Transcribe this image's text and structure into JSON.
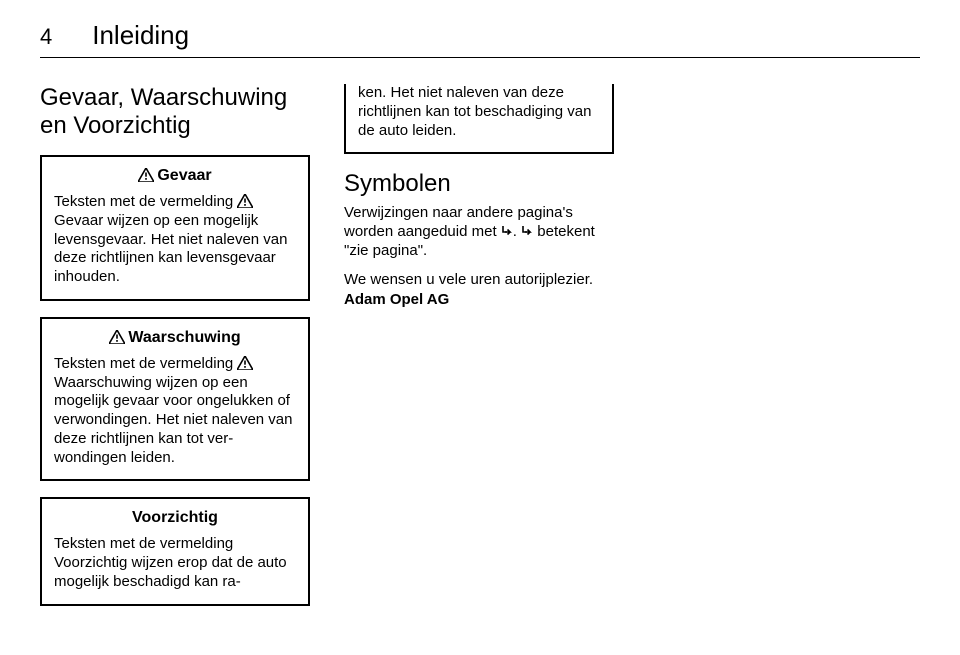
{
  "colors": {
    "text": "#000000",
    "background": "#ffffff",
    "border": "#000000"
  },
  "typography": {
    "body_pt": 15,
    "h2_pt": 24,
    "chapter_pt": 26,
    "page_num_pt": 22,
    "box_title_pt": 16
  },
  "page": {
    "number": "4",
    "chapter": "Inleiding"
  },
  "col1": {
    "heading": "Gevaar, Waarschuwing en Voorzichtig",
    "box_gevaar": {
      "title": "Gevaar",
      "text": "Teksten met de vermelding {warn}Gevaar wijzen op een mogelijk levensgevaar. Het niet naleven van deze richtlijnen kan levensge­vaar inhouden."
    },
    "box_waarschuwing": {
      "title": "Waarschuwing",
      "text": "Teksten met de vermelding {warn}Waarschuwing wijzen op een mogelijk gevaar voor ongelukken of verwondingen. Het niet naleven van deze richtlijnen kan tot ver­wondingen leiden."
    },
    "box_voorzichtig": {
      "title": "Voorzichtig",
      "text_partial": "Teksten met de vermelding Voorzichtig wijzen erop dat de auto mogelijk beschadigd kan ra-"
    }
  },
  "col2": {
    "box_cont": {
      "text": "ken. Het niet naleven van deze richtlijnen kan tot beschadiging van de auto leiden."
    },
    "symbolen": {
      "heading": "Symbolen",
      "p1a": "Verwijzingen naar andere pagina's worden aangeduid met ",
      "p1b": ". ",
      "p1c": " betekent \"zie pagina\".",
      "p2": "We wensen u vele uren autorijplezier.",
      "p3": "Adam Opel AG"
    }
  },
  "icons": {
    "warning_triangle": "warning-triangle-icon",
    "arrow": "page-ref-arrow-icon"
  }
}
